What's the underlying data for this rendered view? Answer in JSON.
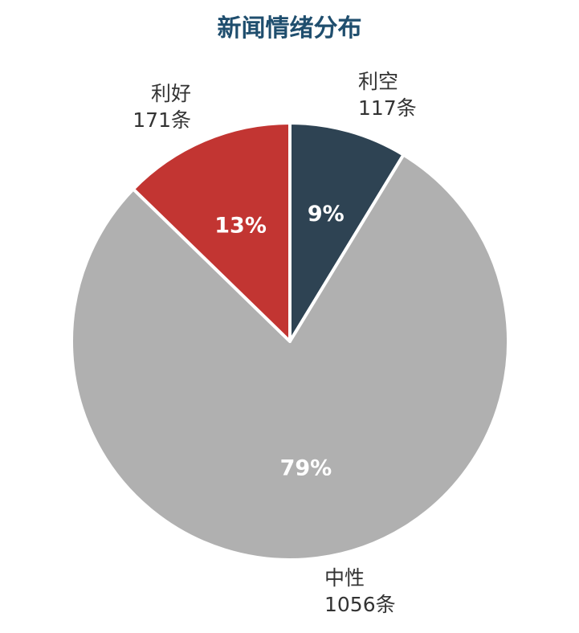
{
  "chart_data": {
    "type": "pie",
    "title": "新闻情绪分布",
    "unit": "条",
    "slices": [
      {
        "name": "利空",
        "count": 117,
        "count_label": "117条",
        "percent_label": "9%",
        "color": "#2e4353"
      },
      {
        "name": "中性",
        "count": 1056,
        "count_label": "1056条",
        "percent_label": "79%",
        "color": "#b0b0b0"
      },
      {
        "name": "利好",
        "count": 171,
        "count_label": "171条",
        "percent_label": "13%",
        "color": "#c23532"
      }
    ]
  }
}
